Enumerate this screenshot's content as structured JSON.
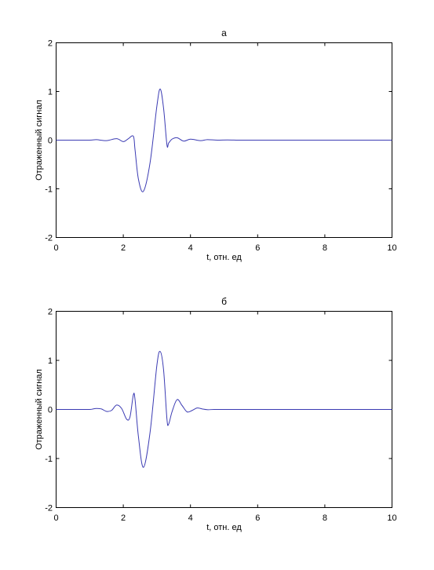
{
  "chart_data": [
    {
      "type": "line",
      "title": "а",
      "xlabel": "t, отн. ед",
      "ylabel": "Отраженный сигнал",
      "xlim": [
        0,
        10
      ],
      "ylim": [
        -2,
        2
      ],
      "xticks": [
        "0",
        "2",
        "4",
        "6",
        "8",
        "10"
      ],
      "yticks": [
        "2",
        "1",
        "0",
        "-1",
        "-2"
      ],
      "grid": false,
      "line_color": "#3b3bb3",
      "series": [
        {
          "x": [
            0,
            0.5,
            1.0,
            1.2,
            1.5,
            1.8,
            2.0,
            2.15,
            2.3,
            2.35,
            2.45,
            2.6,
            2.8,
            3.0,
            3.1,
            3.2,
            3.3,
            3.35,
            3.45,
            3.6,
            3.8,
            4.0,
            4.3,
            4.5,
            4.8,
            5.1,
            5.5,
            6.0,
            7.0,
            8.0,
            9.0,
            10.0
          ],
          "y": [
            0,
            0,
            0,
            0.01,
            -0.01,
            0.03,
            -0.03,
            0.03,
            0.08,
            -0.2,
            -0.8,
            -1.05,
            -0.45,
            0.7,
            1.05,
            0.65,
            -0.1,
            -0.06,
            0.02,
            0.05,
            -0.02,
            0.02,
            -0.01,
            0.01,
            0,
            0.005,
            0,
            0,
            0,
            0,
            0,
            0
          ]
        }
      ]
    },
    {
      "type": "line",
      "title": "б",
      "xlabel": "t, отн. ед",
      "ylabel": "Отраженный сигнал",
      "xlim": [
        0,
        10
      ],
      "ylim": [
        -2,
        2
      ],
      "xticks": [
        "0",
        "2",
        "4",
        "6",
        "8",
        "10"
      ],
      "yticks": [
        "2",
        "1",
        "0",
        "-1",
        "-2"
      ],
      "grid": false,
      "line_color": "#3b3bb3",
      "series": [
        {
          "x": [
            0,
            0.5,
            1.0,
            1.1,
            1.2,
            1.35,
            1.5,
            1.65,
            1.8,
            1.95,
            2.1,
            2.2,
            2.3,
            2.35,
            2.45,
            2.6,
            2.8,
            3.0,
            3.1,
            3.2,
            3.3,
            3.35,
            3.45,
            3.6,
            3.75,
            3.9,
            4.05,
            4.2,
            4.35,
            4.5,
            4.7,
            5.0,
            5.5,
            6.0,
            7.0,
            8.0,
            9.0,
            10.0
          ],
          "y": [
            0,
            0,
            0,
            0.01,
            0.02,
            0.01,
            -0.04,
            -0.02,
            0.09,
            0.02,
            -0.2,
            -0.15,
            0.3,
            0.2,
            -0.55,
            -1.18,
            -0.45,
            0.9,
            1.18,
            0.8,
            -0.2,
            -0.3,
            -0.05,
            0.2,
            0.08,
            -0.05,
            -0.02,
            0.03,
            0.01,
            -0.005,
            0,
            0,
            0,
            0,
            0,
            0,
            0,
            0
          ]
        }
      ]
    }
  ]
}
